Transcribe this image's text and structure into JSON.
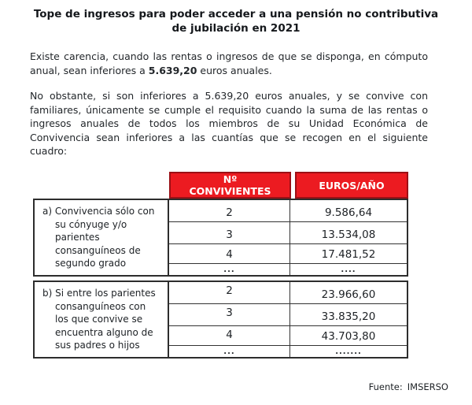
{
  "page": {
    "title": "Tope de ingresos para poder acceder a una pensión no contributiva de jubilación en 2021"
  },
  "paragraphs": {
    "p1": {
      "before": "Existe carencia, cuando las rentas o ingresos de que se disponga, en cómputo anual, sean inferiores a ",
      "amount_bold": "5.639,20",
      "after": " euros anuales."
    },
    "p2": "No obstante, si son inferiores a 5.639,20 euros anuales, y se convive con familiares, únicamente se cumple el requisito cuando la suma de las rentas o ingresos anuales de todos los miembros de su Unidad Económica de Convivencia sean inferiores a las cuantías que se recogen en el siguiente cuadro:"
  },
  "table": {
    "columns": [
      {
        "label": "Nº CONVIVIENTES"
      },
      {
        "label": "EUROS/AÑO"
      }
    ],
    "header_bg_color": "#ec1b21",
    "header_border_color": "#9c1016",
    "sections": [
      {
        "label": "a) Convivencia sólo con su cónyuge y/o parientes consanguíneos de segundo grado",
        "rows": [
          {
            "convivientes": "2",
            "euros": "9.586,64"
          },
          {
            "convivientes": "3",
            "euros": "13.534,08"
          },
          {
            "convivientes": "4",
            "euros": "17.481,52"
          },
          {
            "convivientes": "...",
            "euros": "...."
          }
        ]
      },
      {
        "label": "b) Si entre los parientes consanguíneos con los que convive se encuentra alguno de sus padres o hijos",
        "rows": [
          {
            "convivientes": "2",
            "euros": "23.966,60"
          },
          {
            "convivientes": "3",
            "euros": "33.835,20"
          },
          {
            "convivientes": "4",
            "euros": "43.703,80"
          },
          {
            "convivientes": "...",
            "euros": "......."
          }
        ]
      }
    ]
  },
  "footer": {
    "source_label": "Fuente:",
    "source_value": "IMSERSO"
  }
}
